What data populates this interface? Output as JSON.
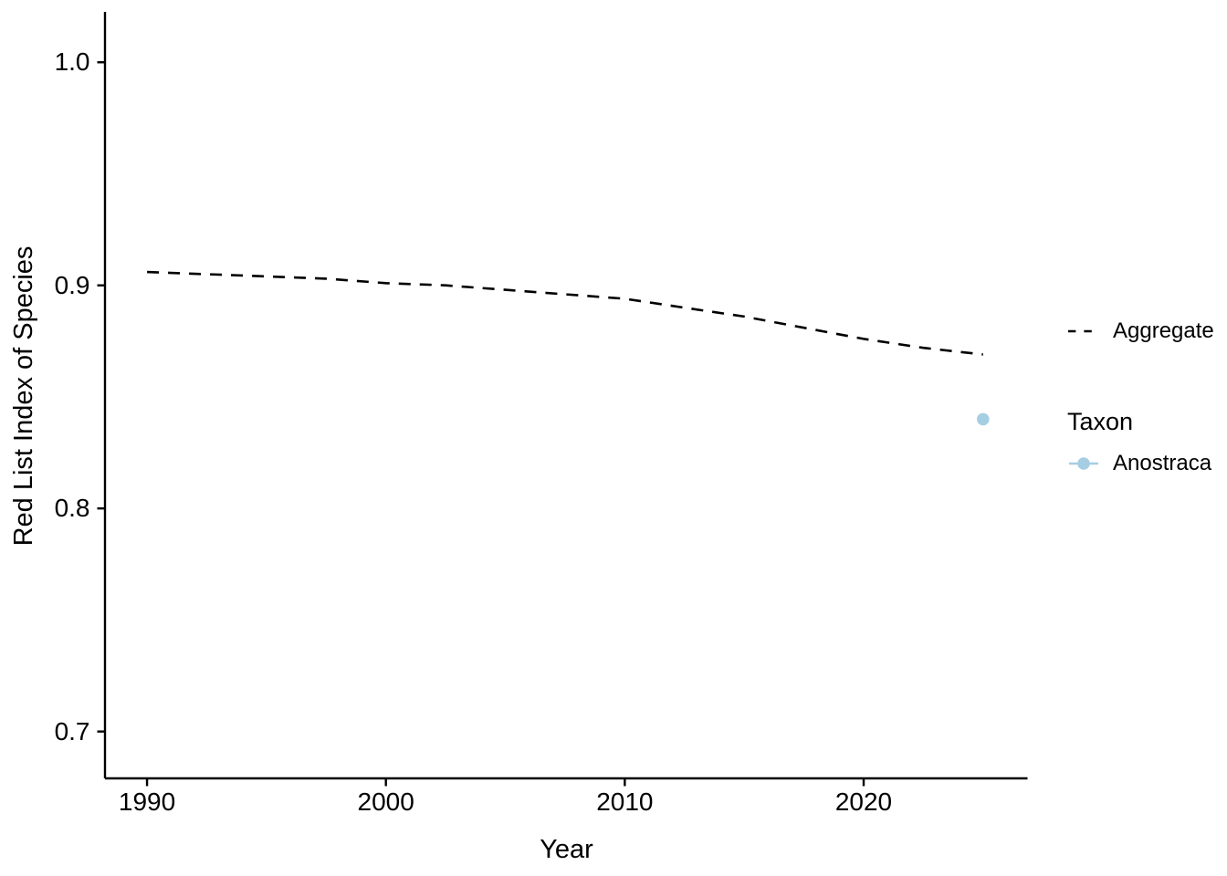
{
  "chart_data": {
    "type": "line",
    "title": "",
    "xlabel": "Year",
    "ylabel": "Red List Index of Species",
    "x_ticks": [
      "1990",
      "2000",
      "2010",
      "2020"
    ],
    "y_ticks": [
      "1.0",
      "0.9",
      "0.8",
      "0.7"
    ],
    "xlim": [
      1988.24,
      2026.86
    ],
    "ylim": [
      0.679,
      1.0226
    ],
    "grid": false,
    "background": "#ffffff",
    "axis_color": "#000000",
    "legend_position": "right",
    "series": [
      {
        "name": "Aggregate",
        "style": "dashed-line",
        "color": "#000000",
        "x": [
          1990,
          1992.5,
          1995,
          1997.5,
          2000,
          2002.5,
          2005,
          2007.5,
          2010,
          2012.5,
          2015,
          2017.5,
          2020,
          2022.5,
          2025
        ],
        "y": [
          0.906,
          0.905,
          0.904,
          0.903,
          0.901,
          0.9,
          0.898,
          0.896,
          0.894,
          0.89,
          0.886,
          0.881,
          0.876,
          0.872,
          0.869
        ]
      },
      {
        "name": "Anostraca",
        "style": "point",
        "color": "#A6CEE3",
        "x": [
          2025
        ],
        "y": [
          0.84
        ]
      }
    ],
    "legend": {
      "aggregate_label": "Aggregate",
      "taxon_title": "Taxon",
      "anostraca_label": "Anostraca"
    }
  }
}
